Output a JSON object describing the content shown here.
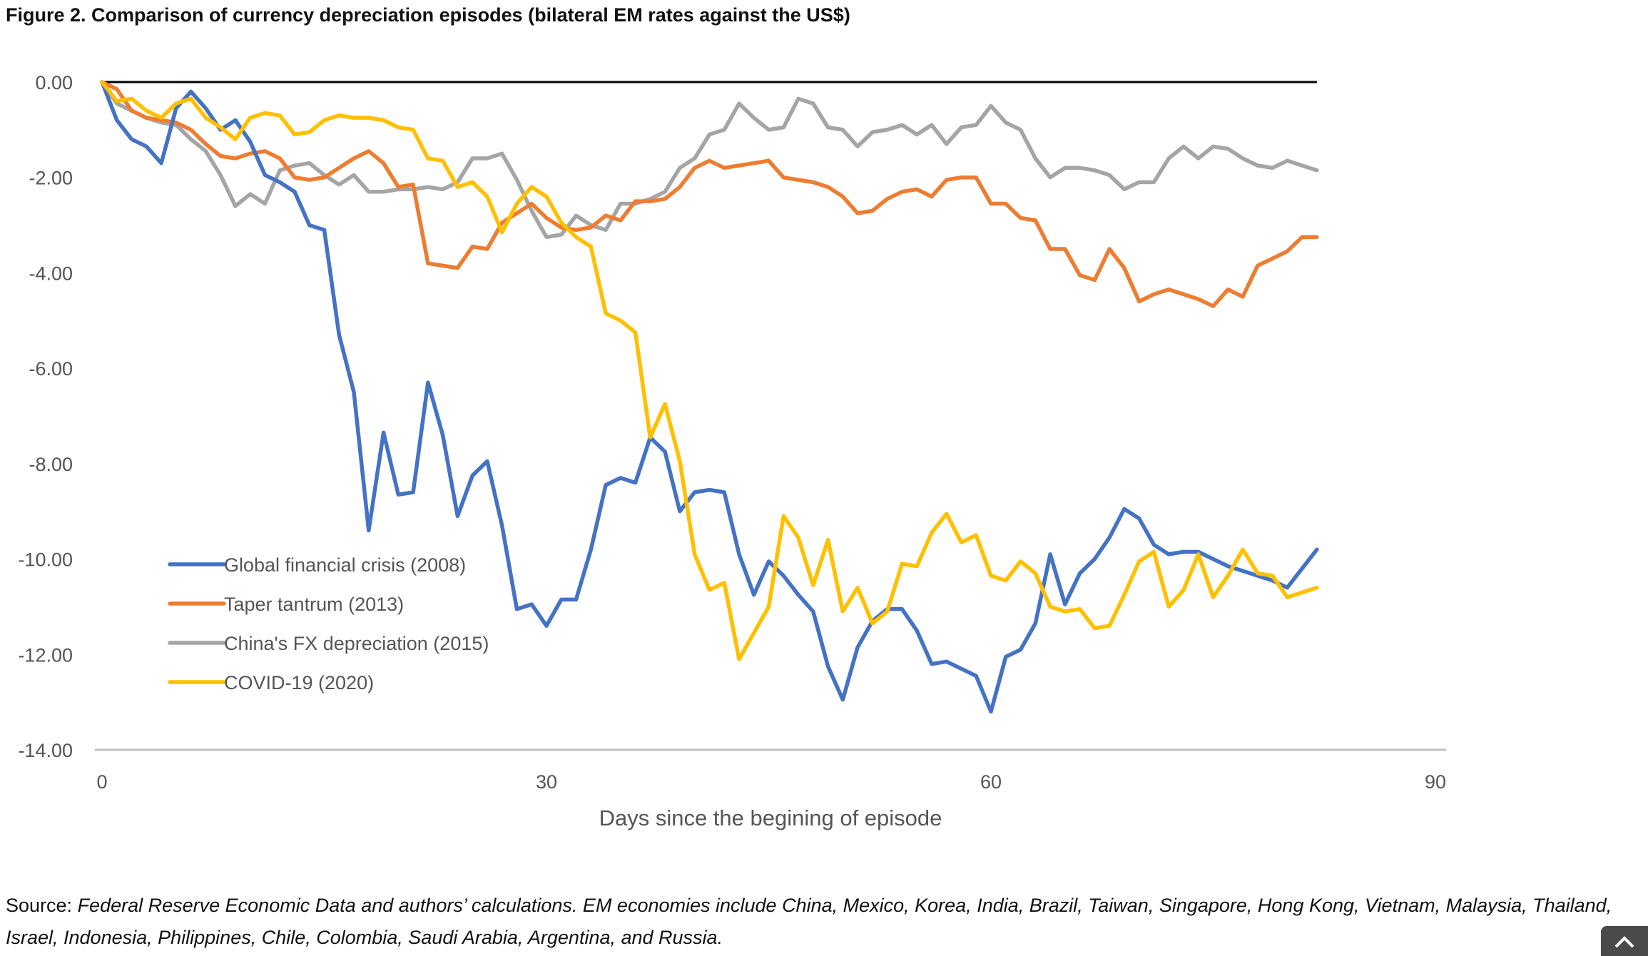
{
  "figure_title": "Figure 2. Comparison of currency depreciation episodes (bilateral EM rates against the US$)",
  "source": {
    "label": "Source: ",
    "text": "Federal Reserve Economic Data and authors’ calculations. EM economies include China, Mexico, Korea, India, Brazil, Taiwan, Singapore, Hong Kong, Vietnam, Malaysia, Thailand, Israel, Indonesia, Philippines, Chile, Colombia, Saudi Arabia, Argentina, and Russia."
  },
  "scroll_top_icon": "chevron-up-icon",
  "chart_data": {
    "type": "line",
    "title": "",
    "xlabel": "Days since the begining of episode",
    "ylabel": "",
    "xlim": [
      0,
      90
    ],
    "ylim": [
      -14,
      0
    ],
    "x_ticks": [
      "0",
      "30",
      "60",
      "90"
    ],
    "y_ticks": [
      "0.00",
      "-2.00",
      "-4.00",
      "-6.00",
      "-8.00",
      "-10.00",
      "-12.00",
      "-14.00"
    ],
    "grid": false,
    "legend_position": "lower-left",
    "zero_line": true,
    "series": [
      {
        "name": "Global financial crisis (2008)",
        "color": "#4472C4",
        "values": [
          0,
          -0.8,
          -1.2,
          -1.35,
          -1.7,
          -0.55,
          -0.2,
          -0.55,
          -1.0,
          -0.8,
          -1.25,
          -1.95,
          -2.1,
          -2.3,
          -3.0,
          -3.1,
          -5.3,
          -6.5,
          -9.4,
          -7.35,
          -8.65,
          -8.6,
          -6.3,
          -7.4,
          -9.1,
          -8.25,
          -7.95,
          -9.3,
          -11.05,
          -10.95,
          -11.4,
          -10.85,
          -10.85,
          -9.8,
          -8.45,
          -8.3,
          -8.4,
          -7.45,
          -7.75,
          -9.0,
          -8.6,
          -8.55,
          -8.6,
          -9.9,
          -10.75,
          -10.05,
          -10.35,
          -10.75,
          -11.1,
          -12.25,
          -12.95,
          -11.85,
          -11.3,
          -11.05,
          -11.05,
          -11.5,
          -12.2,
          -12.15,
          -12.3,
          -12.45,
          -13.2,
          -12.05,
          -11.9,
          -11.35,
          -9.9,
          -10.95,
          -10.3,
          -10.0,
          -9.55,
          -8.95,
          -9.15,
          -9.7,
          -9.9,
          -9.85,
          -9.85,
          -10.0,
          -10.15,
          -10.25,
          -10.35,
          -10.45,
          -10.6,
          -10.2,
          -9.8
        ]
      },
      {
        "name": "Taper tantrum (2013)",
        "color": "#ED7D31",
        "values": [
          0,
          -0.15,
          -0.6,
          -0.75,
          -0.8,
          -0.85,
          -1.0,
          -1.3,
          -1.55,
          -1.6,
          -1.5,
          -1.45,
          -1.6,
          -2.0,
          -2.05,
          -2.0,
          -1.8,
          -1.6,
          -1.45,
          -1.7,
          -2.2,
          -2.15,
          -3.8,
          -3.85,
          -3.9,
          -3.45,
          -3.5,
          -2.95,
          -2.75,
          -2.55,
          -2.85,
          -3.05,
          -3.1,
          -3.05,
          -2.8,
          -2.9,
          -2.5,
          -2.5,
          -2.45,
          -2.2,
          -1.8,
          -1.65,
          -1.8,
          -1.75,
          -1.7,
          -1.65,
          -2.0,
          -2.05,
          -2.1,
          -2.2,
          -2.4,
          -2.75,
          -2.7,
          -2.45,
          -2.3,
          -2.25,
          -2.4,
          -2.05,
          -2.0,
          -2.0,
          -2.55,
          -2.55,
          -2.85,
          -2.9,
          -3.5,
          -3.5,
          -4.05,
          -4.15,
          -3.5,
          -3.9,
          -4.6,
          -4.45,
          -4.35,
          -4.45,
          -4.55,
          -4.7,
          -4.35,
          -4.5,
          -3.85,
          -3.7,
          -3.55,
          -3.25,
          -3.25
        ]
      },
      {
        "name": "China's FX depreciation (2015)",
        "color": "#A5A5A5",
        "values": [
          0,
          -0.45,
          -0.6,
          -0.75,
          -0.85,
          -0.9,
          -1.2,
          -1.45,
          -1.95,
          -2.6,
          -2.35,
          -2.55,
          -1.85,
          -1.75,
          -1.7,
          -1.95,
          -2.15,
          -1.95,
          -2.3,
          -2.3,
          -2.25,
          -2.25,
          -2.2,
          -2.25,
          -2.1,
          -1.6,
          -1.6,
          -1.5,
          -2.05,
          -2.7,
          -3.25,
          -3.2,
          -2.8,
          -3.0,
          -3.1,
          -2.55,
          -2.55,
          -2.45,
          -2.3,
          -1.8,
          -1.6,
          -1.1,
          -1.0,
          -0.45,
          -0.75,
          -1.0,
          -0.95,
          -0.35,
          -0.45,
          -0.95,
          -1.0,
          -1.35,
          -1.05,
          -1.0,
          -0.9,
          -1.1,
          -0.9,
          -1.3,
          -0.95,
          -0.9,
          -0.5,
          -0.85,
          -1.0,
          -1.6,
          -2.0,
          -1.8,
          -1.8,
          -1.85,
          -1.95,
          -2.25,
          -2.1,
          -2.1,
          -1.6,
          -1.35,
          -1.6,
          -1.35,
          -1.4,
          -1.6,
          -1.75,
          -1.8,
          -1.65,
          -1.75,
          -1.85
        ]
      },
      {
        "name": "COVID-19 (2020)",
        "color": "#FFC000",
        "values": [
          0,
          -0.4,
          -0.35,
          -0.6,
          -0.75,
          -0.45,
          -0.35,
          -0.75,
          -0.95,
          -1.2,
          -0.75,
          -0.65,
          -0.7,
          -1.1,
          -1.05,
          -0.8,
          -0.7,
          -0.75,
          -0.75,
          -0.8,
          -0.95,
          -1.0,
          -1.6,
          -1.65,
          -2.2,
          -2.1,
          -2.4,
          -3.15,
          -2.55,
          -2.2,
          -2.4,
          -2.95,
          -3.25,
          -3.45,
          -4.85,
          -5.0,
          -5.25,
          -7.45,
          -6.75,
          -7.95,
          -9.9,
          -10.65,
          -10.5,
          -12.1,
          -11.55,
          -11.0,
          -9.1,
          -9.55,
          -10.55,
          -9.6,
          -11.1,
          -10.6,
          -11.35,
          -11.1,
          -10.1,
          -10.15,
          -9.45,
          -9.05,
          -9.65,
          -9.5,
          -10.35,
          -10.45,
          -10.05,
          -10.3,
          -11.0,
          -11.1,
          -11.05,
          -11.45,
          -11.4,
          -10.75,
          -10.05,
          -9.85,
          -11.0,
          -10.65,
          -9.9,
          -10.8,
          -10.35,
          -9.8,
          -10.3,
          -10.35,
          -10.8,
          -10.7,
          -10.6
        ]
      }
    ]
  }
}
